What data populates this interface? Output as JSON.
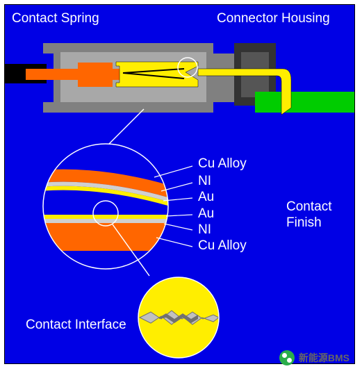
{
  "canvas": {
    "bg": "#0000e5",
    "border": "#000000"
  },
  "labels": {
    "contact_spring": "Contact Spring",
    "connector_housing": "Connector Housing",
    "cu_alloy_top": "Cu Alloy",
    "ni_top": "NI",
    "au_top": "Au",
    "au_bottom": "Au",
    "ni_bottom": "NI",
    "cu_alloy_bottom": "Cu Alloy",
    "contact_finish": "Contact Finish",
    "contact_interface": "Contact Interface"
  },
  "colors": {
    "housing_outer": "#808080",
    "housing_lighter": "#a8a8a8",
    "contact_orange": "#ff6600",
    "contact_yellow": "#ffee00",
    "pcb_green": "#00cc00",
    "board_black": "#000000",
    "circle_stroke": "#ffffff",
    "leader": "#ffffff",
    "text": "#ffffff",
    "au": "#ffee00",
    "ni": "#d0d0d0",
    "cu": "#ff6600",
    "asperity_light": "#c0c0c0",
    "asperity_dark": "#707070",
    "contact_yellow_face": "#ffee00"
  },
  "fontsize": {
    "label": 19
  },
  "watermark": {
    "text": "新能源BMS",
    "icon_color": "#2aad4a"
  }
}
